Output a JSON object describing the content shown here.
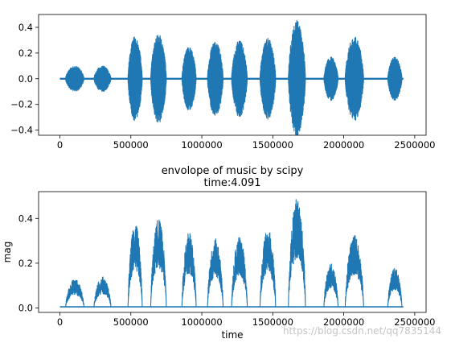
{
  "figure": {
    "watermark": "https://blog.csdn.net/qq7835144"
  },
  "colors": {
    "series": "#1f77b4",
    "axes": "#000000",
    "background": "#ffffff"
  },
  "chart_data": [
    {
      "type": "line",
      "title": "",
      "xlabel": "",
      "ylabel": "",
      "xlim": [
        -150000,
        2580000
      ],
      "ylim": [
        -0.44,
        0.5
      ],
      "grid": false,
      "xticks": [
        0,
        500000,
        1000000,
        1500000,
        2000000,
        2500000
      ],
      "xtick_labels": [
        "0",
        "500000",
        "1000000",
        "1500000",
        "2000000",
        "2500000"
      ],
      "yticks": [
        -0.4,
        -0.2,
        0.0,
        0.2,
        0.4
      ],
      "ytick_labels": [
        "−0.4",
        "−0.2",
        "0.0",
        "0.2",
        "0.4"
      ],
      "series": [
        {
          "description_kind": "waveform",
          "x_range": [
            0,
            2420000
          ],
          "baseline_amplitude": 0.01,
          "bursts": [
            {
              "x_start": 40000,
              "x_end": 170000,
              "amplitude": 0.1
            },
            {
              "x_start": 240000,
              "x_end": 360000,
              "amplitude": 0.1
            },
            {
              "x_start": 480000,
              "x_end": 580000,
              "amplitude": 0.33
            },
            {
              "x_start": 640000,
              "x_end": 750000,
              "amplitude": 0.35
            },
            {
              "x_start": 860000,
              "x_end": 960000,
              "amplitude": 0.25
            },
            {
              "x_start": 1040000,
              "x_end": 1150000,
              "amplitude": 0.3
            },
            {
              "x_start": 1210000,
              "x_end": 1320000,
              "amplitude": 0.3
            },
            {
              "x_start": 1410000,
              "x_end": 1520000,
              "amplitude": 0.32
            },
            {
              "x_start": 1610000,
              "x_end": 1730000,
              "amplitude": 0.46
            },
            {
              "x_start": 1860000,
              "x_end": 1960000,
              "amplitude": 0.17
            },
            {
              "x_start": 2010000,
              "x_end": 2140000,
              "amplitude": 0.33
            },
            {
              "x_start": 2310000,
              "x_end": 2410000,
              "amplitude": 0.17
            }
          ]
        }
      ]
    },
    {
      "type": "line",
      "title": "envolope of music by scipy",
      "subtitle": "time:4.091",
      "xlabel": "time",
      "ylabel": "mag",
      "xlim": [
        -150000,
        2580000
      ],
      "ylim": [
        -0.02,
        0.52
      ],
      "grid": false,
      "xticks": [
        0,
        500000,
        1000000,
        1500000,
        2000000,
        2500000
      ],
      "xtick_labels": [
        "0",
        "500000",
        "1000000",
        "1500000",
        "2000000",
        "2500000"
      ],
      "yticks": [
        0.0,
        0.2,
        0.4
      ],
      "ytick_labels": [
        "0.0",
        "0.2",
        "0.4"
      ],
      "series": [
        {
          "description_kind": "envelope",
          "x_range": [
            0,
            2420000
          ],
          "baseline": 0.005,
          "bursts": [
            {
              "x_start": 40000,
              "x_end": 170000,
              "peak": 0.13
            },
            {
              "x_start": 240000,
              "x_end": 360000,
              "peak": 0.14
            },
            {
              "x_start": 480000,
              "x_end": 580000,
              "peak": 0.38
            },
            {
              "x_start": 640000,
              "x_end": 750000,
              "peak": 0.4
            },
            {
              "x_start": 860000,
              "x_end": 960000,
              "peak": 0.34
            },
            {
              "x_start": 1040000,
              "x_end": 1150000,
              "peak": 0.31
            },
            {
              "x_start": 1210000,
              "x_end": 1320000,
              "peak": 0.32
            },
            {
              "x_start": 1410000,
              "x_end": 1520000,
              "peak": 0.36
            },
            {
              "x_start": 1610000,
              "x_end": 1730000,
              "peak": 0.49
            },
            {
              "x_start": 1860000,
              "x_end": 1960000,
              "peak": 0.2
            },
            {
              "x_start": 2010000,
              "x_end": 2140000,
              "peak": 0.33
            },
            {
              "x_start": 2310000,
              "x_end": 2410000,
              "peak": 0.18
            }
          ]
        }
      ]
    }
  ]
}
